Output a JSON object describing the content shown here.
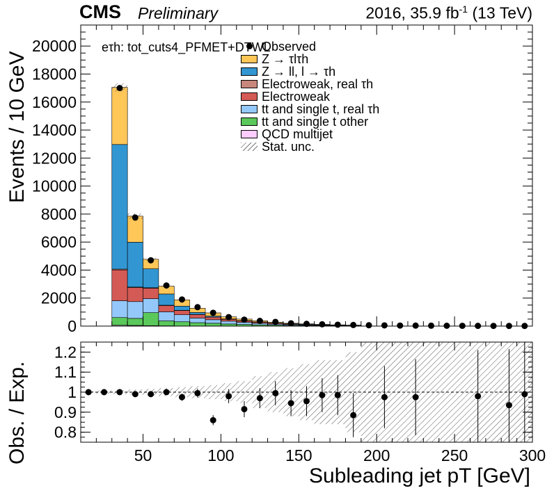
{
  "header": {
    "experiment": "CMS",
    "status": "Preliminary",
    "lumi_prefix": "2016, 35.9 fb",
    "lumi_exp": "-1",
    "lumi_suffix": " (13 TeV)"
  },
  "selection_label": "eτh: tot_cuts4_PFMET+DTWL",
  "legend": [
    {
      "label": "Observed",
      "kind": "marker"
    },
    {
      "label": "Z → τlτh",
      "kind": "fill",
      "color": "#ffc658"
    },
    {
      "label": "Z → ll, l → τh",
      "kind": "fill",
      "color": "#3296d2"
    },
    {
      "label": "Electroweak, real τh",
      "kind": "fill",
      "color": "#c8877c"
    },
    {
      "label": "Electroweak",
      "kind": "fill",
      "color": "#d45a55"
    },
    {
      "label": "tt and single t, real τh",
      "kind": "fill",
      "color": "#94c8fa"
    },
    {
      "label": "tt and single t other",
      "kind": "fill",
      "color": "#5ac85a"
    },
    {
      "label": "QCD multijet",
      "kind": "fill",
      "color": "#ffccff"
    },
    {
      "label": "Stat. unc.",
      "kind": "hatch"
    }
  ],
  "chart_data": [
    {
      "type": "bar",
      "stacked": true,
      "xlabel": "Subleading jet pT [GeV]",
      "ylabel": "Events / 10 GeV",
      "xlim": [
        10,
        300
      ],
      "ylim": [
        0,
        21500
      ],
      "xticks": [
        50,
        100,
        150,
        200,
        250,
        300
      ],
      "yticks": [
        0,
        2000,
        4000,
        6000,
        8000,
        10000,
        12000,
        14000,
        16000,
        18000,
        20000
      ],
      "bin_edges": [
        30,
        40,
        50,
        60,
        70,
        80,
        90,
        100,
        110,
        120,
        130,
        140,
        150,
        160,
        170,
        180,
        190
      ],
      "series": [
        {
          "name": "QCD multijet",
          "color": "#ffccff",
          "values": [
            60,
            50,
            30,
            20,
            10,
            5,
            5,
            3,
            2,
            2,
            1,
            1,
            1,
            0,
            0,
            0
          ]
        },
        {
          "name": "tt and single t other",
          "color": "#5ac85a",
          "values": [
            550,
            500,
            930,
            350,
            300,
            240,
            200,
            150,
            120,
            90,
            70,
            50,
            40,
            30,
            20,
            15
          ]
        },
        {
          "name": "tt and single t, real τh",
          "color": "#94c8fa",
          "values": [
            1200,
            1200,
            1000,
            650,
            500,
            330,
            250,
            200,
            150,
            110,
            80,
            60,
            45,
            35,
            25,
            20
          ]
        },
        {
          "name": "Electroweak",
          "color": "#d45a55",
          "values": [
            2200,
            1000,
            750,
            450,
            300,
            250,
            180,
            130,
            100,
            80,
            60,
            45,
            35,
            25,
            20,
            15
          ]
        },
        {
          "name": "Electroweak, real τh",
          "color": "#c8877c",
          "values": [
            60,
            40,
            30,
            20,
            15,
            10,
            8,
            6,
            5,
            4,
            3,
            2,
            2,
            1,
            1,
            1
          ]
        },
        {
          "name": "Z → ll, l → τh",
          "color": "#3296d2",
          "values": [
            8900,
            3200,
            1350,
            800,
            300,
            140,
            70,
            25,
            15,
            10,
            5,
            5,
            3,
            2,
            2,
            1
          ]
        },
        {
          "name": "Z → τlτh",
          "color": "#ffc658",
          "values": [
            4080,
            1860,
            680,
            560,
            450,
            300,
            230,
            146,
            110,
            84,
            56,
            40,
            33,
            27,
            21,
            17
          ]
        }
      ],
      "total_unc": [
        300,
        200,
        110,
        70,
        50,
        35,
        30,
        25,
        20,
        18,
        15,
        13,
        11,
        10,
        9,
        8
      ],
      "observed": {
        "name": "Observed",
        "x": [
          35,
          45,
          55,
          65,
          75,
          85,
          95,
          105,
          115,
          125,
          135,
          145,
          155,
          165,
          175,
          185,
          195,
          205,
          215,
          225,
          235,
          245,
          255,
          265,
          275,
          285,
          295
        ],
        "y": [
          17000,
          7750,
          4700,
          2900,
          1900,
          1350,
          950,
          640,
          460,
          370,
          300,
          200,
          160,
          130,
          100,
          80,
          60,
          50,
          40,
          35,
          30,
          25,
          20,
          18,
          15,
          12,
          10
        ]
      }
    },
    {
      "type": "scatter",
      "xlabel": "Subleading jet pT [GeV]",
      "ylabel": "Obs. / Exp.",
      "xlim": [
        10,
        300
      ],
      "ylim": [
        0.75,
        1.25
      ],
      "xticks": [
        50,
        100,
        150,
        200,
        250,
        300
      ],
      "yticks": [
        0.8,
        0.9,
        1,
        1.1,
        1.2
      ],
      "reference_line": 1,
      "unc_band": {
        "bin_edges": [
          10,
          20,
          30,
          40,
          50,
          60,
          70,
          80,
          90,
          100,
          110,
          120,
          130,
          140,
          150,
          160,
          170,
          180,
          190,
          200,
          220,
          240,
          260,
          280,
          300
        ],
        "half_width": [
          0.006,
          0.008,
          0.01,
          0.013,
          0.016,
          0.02,
          0.025,
          0.03,
          0.035,
          0.045,
          0.055,
          0.08,
          0.1,
          0.12,
          0.14,
          0.16,
          0.16,
          0.2,
          0.25,
          0.25,
          0.25,
          0.25,
          0.25,
          0.25
        ]
      },
      "points": {
        "x": [
          15,
          25,
          35,
          45,
          55,
          65,
          75,
          85,
          95,
          105,
          115,
          125,
          135,
          145,
          155,
          165,
          175,
          185,
          205,
          225,
          265,
          285,
          295
        ],
        "y": [
          1.0,
          1.0,
          1.0,
          0.99,
          0.99,
          1.0,
          0.975,
          0.995,
          0.86,
          0.98,
          0.915,
          0.97,
          0.995,
          0.945,
          0.955,
          0.985,
          0.985,
          0.885,
          0.975,
          0.975,
          0.98,
          0.935,
          0.99
        ],
        "err": [
          0.004,
          0.005,
          0.006,
          0.008,
          0.01,
          0.012,
          0.018,
          0.022,
          0.025,
          0.035,
          0.04,
          0.05,
          0.06,
          0.065,
          0.075,
          0.085,
          0.1,
          0.11,
          0.155,
          0.19,
          0.23,
          0.28,
          0.28
        ]
      }
    }
  ]
}
